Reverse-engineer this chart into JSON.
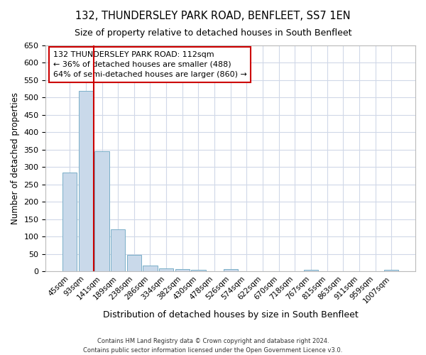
{
  "title": "132, THUNDERSLEY PARK ROAD, BENFLEET, SS7 1EN",
  "subtitle": "Size of property relative to detached houses in South Benfleet",
  "xlabel": "Distribution of detached houses by size in South Benfleet",
  "ylabel": "Number of detached properties",
  "bar_labels": [
    "45sqm",
    "93sqm",
    "141sqm",
    "189sqm",
    "238sqm",
    "286sqm",
    "334sqm",
    "382sqm",
    "430sqm",
    "478sqm",
    "526sqm",
    "574sqm",
    "622sqm",
    "670sqm",
    "718sqm",
    "767sqm",
    "815sqm",
    "863sqm",
    "911sqm",
    "959sqm",
    "1007sqm"
  ],
  "bar_values": [
    285,
    520,
    345,
    122,
    48,
    18,
    10,
    8,
    5,
    0,
    8,
    0,
    0,
    0,
    0,
    5,
    0,
    0,
    0,
    0,
    5
  ],
  "bar_color": "#c9d9ea",
  "bar_edge_color": "#7aafc8",
  "property_line_x": 1.5,
  "annotation_text": "132 THUNDERSLEY PARK ROAD: 112sqm\n← 36% of detached houses are smaller (488)\n64% of semi-detached houses are larger (860) →",
  "annotation_box_color": "#ffffff",
  "annotation_box_edge": "#cc0000",
  "red_line_color": "#cc0000",
  "ylim": [
    0,
    650
  ],
  "yticks": [
    0,
    50,
    100,
    150,
    200,
    250,
    300,
    350,
    400,
    450,
    500,
    550,
    600,
    650
  ],
  "footer_line1": "Contains HM Land Registry data © Crown copyright and database right 2024.",
  "footer_line2": "Contains public sector information licensed under the Open Government Licence v3.0.",
  "background_color": "#ffffff",
  "grid_color": "#d0d8e8"
}
